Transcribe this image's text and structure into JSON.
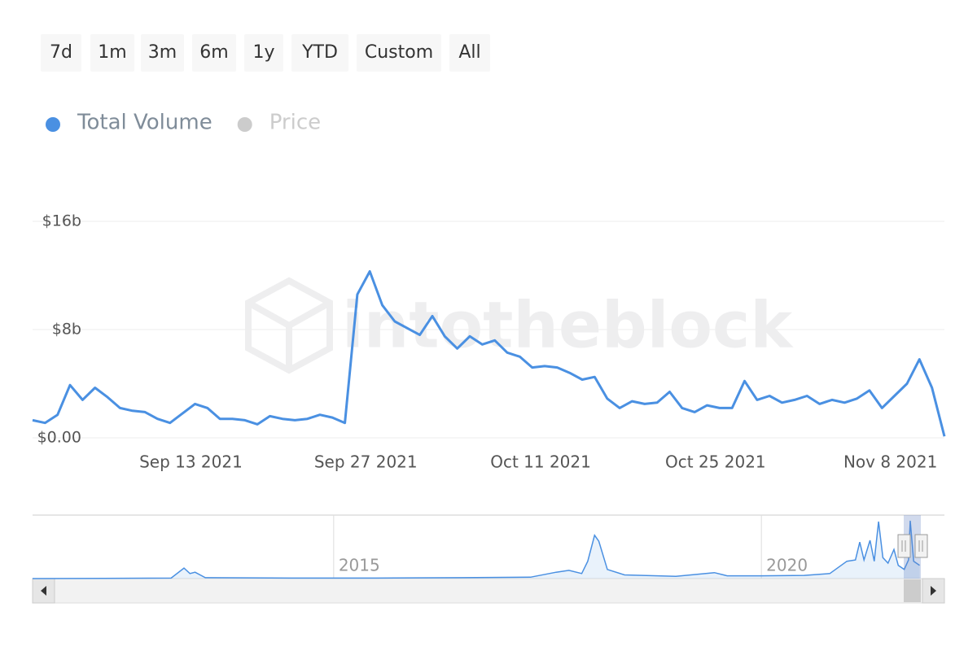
{
  "range_buttons": [
    "7d",
    "1m",
    "3m",
    "6m",
    "1y",
    "YTD",
    "Custom",
    "All"
  ],
  "watermark": "intotheblock",
  "chart_data": [
    {
      "type": "line",
      "series": [
        {
          "name": "Total Volume",
          "color": "#4a90e2",
          "values": [
            1.3,
            1.1,
            1.7,
            3.9,
            2.8,
            3.7,
            3.0,
            2.2,
            2.0,
            1.9,
            1.4,
            1.1,
            1.8,
            2.5,
            2.2,
            1.4,
            1.4,
            1.3,
            1.0,
            1.6,
            1.4,
            1.3,
            1.4,
            1.7,
            1.5,
            1.1,
            10.6,
            12.3,
            9.8,
            8.6,
            8.1,
            7.6,
            9.0,
            7.5,
            6.6,
            7.5,
            6.9,
            7.2,
            6.3,
            6.0,
            5.2,
            5.3,
            5.2,
            4.8,
            4.3,
            4.5,
            2.9,
            2.2,
            2.7,
            2.5,
            2.6,
            3.4,
            2.2,
            1.9,
            2.4,
            2.2,
            2.2,
            4.2,
            2.8,
            3.1,
            2.6,
            2.8,
            3.1,
            2.5,
            2.8,
            2.6,
            2.9,
            3.5,
            2.2,
            3.1,
            4.0,
            5.8,
            3.7,
            0.1
          ]
        },
        {
          "name": "Price",
          "color": "#cccccc",
          "visible": false
        }
      ],
      "x": [
        "2021-08-31",
        "2021-09-01",
        "2021-09-02",
        "2021-09-03",
        "2021-09-04",
        "2021-09-05",
        "2021-09-06",
        "2021-09-07",
        "2021-09-08",
        "2021-09-09",
        "2021-09-10",
        "2021-09-11",
        "2021-09-12",
        "2021-09-13",
        "2021-09-14",
        "2021-09-15",
        "2021-09-16",
        "2021-09-17",
        "2021-09-18",
        "2021-09-19",
        "2021-09-20",
        "2021-09-21",
        "2021-09-22",
        "2021-09-23",
        "2021-09-24",
        "2021-09-25",
        "2021-09-26",
        "2021-09-27",
        "2021-09-28",
        "2021-09-29",
        "2021-09-30",
        "2021-10-01",
        "2021-10-02",
        "2021-10-03",
        "2021-10-04",
        "2021-10-05",
        "2021-10-06",
        "2021-10-07",
        "2021-10-08",
        "2021-10-09",
        "2021-10-10",
        "2021-10-11",
        "2021-10-12",
        "2021-10-13",
        "2021-10-14",
        "2021-10-15",
        "2021-10-16",
        "2021-10-17",
        "2021-10-18",
        "2021-10-19",
        "2021-10-20",
        "2021-10-21",
        "2021-10-22",
        "2021-10-23",
        "2021-10-24",
        "2021-10-25",
        "2021-10-26",
        "2021-10-27",
        "2021-10-28",
        "2021-10-29",
        "2021-10-30",
        "2021-10-31",
        "2021-11-01",
        "2021-11-02",
        "2021-11-03",
        "2021-11-04",
        "2021-11-05",
        "2021-11-06",
        "2021-11-07",
        "2021-11-08",
        "2021-11-09",
        "2021-11-10",
        "2021-11-11",
        "2021-11-12"
      ],
      "xlim": [
        "2021-08-31",
        "2021-11-12"
      ],
      "xticks": [
        {
          "value": "2021-09-13",
          "label": "Sep 13 2021"
        },
        {
          "value": "2021-09-27",
          "label": "Sep 27 2021"
        },
        {
          "value": "2021-10-11",
          "label": "Oct 11 2021"
        },
        {
          "value": "2021-10-25",
          "label": "Oct 25 2021"
        },
        {
          "value": "2021-11-08",
          "label": "Nov 8 2021"
        }
      ],
      "ylim": [
        0,
        16
      ],
      "yticks": [
        {
          "value": 0,
          "label": "$0.00"
        },
        {
          "value": 8,
          "label": "$8b"
        },
        {
          "value": 16,
          "label": "$16b"
        }
      ],
      "grid": true
    },
    {
      "type": "area",
      "color": "#4a90e2",
      "x": [
        2011.48,
        2013.1,
        2013.25,
        2013.32,
        2013.38,
        2013.5,
        2014.5,
        2015.5,
        2016.5,
        2017.3,
        2017.6,
        2017.75,
        2017.9,
        2017.97,
        2018.05,
        2018.1,
        2018.2,
        2018.4,
        2019.0,
        2019.45,
        2019.6,
        2020.0,
        2020.5,
        2020.8,
        2021.0,
        2021.1,
        2021.15,
        2021.2,
        2021.27,
        2021.32,
        2021.37,
        2021.42,
        2021.48,
        2021.55,
        2021.6,
        2021.67,
        2021.72,
        2021.74,
        2021.78,
        2021.85
      ],
      "values": [
        0,
        0.1,
        2.3,
        1.1,
        1.4,
        0.2,
        0.1,
        0.1,
        0.2,
        0.3,
        1.4,
        1.8,
        1.1,
        3.8,
        9.5,
        8.2,
        2.0,
        0.8,
        0.5,
        1.3,
        0.6,
        0.6,
        0.7,
        1.1,
        3.8,
        4.1,
        8.0,
        4.1,
        8.4,
        3.8,
        12.5,
        4.6,
        3.4,
        6.4,
        2.9,
        2.0,
        4.1,
        12.7,
        3.8,
        2.9
      ],
      "xlim": [
        2011.48,
        2022.14
      ],
      "ylim": [
        0,
        13.4
      ],
      "xticks": [
        2015,
        2020
      ]
    }
  ]
}
